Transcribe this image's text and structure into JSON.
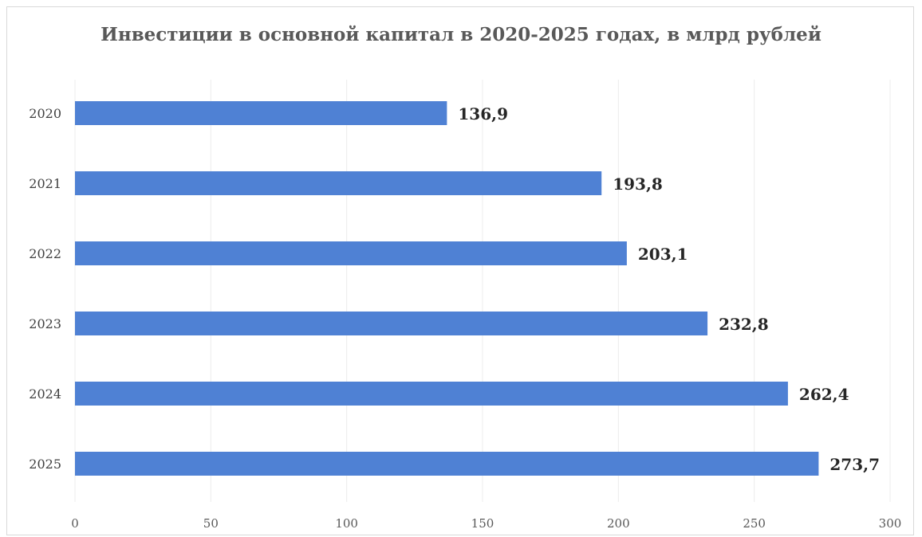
{
  "chart_data": {
    "type": "bar",
    "orientation": "horizontal",
    "title": "Инвестиции в основной капитал в 2020-2025 годах, в млрд рублей",
    "categories": [
      "2020",
      "2021",
      "2022",
      "2023",
      "2024",
      "2025"
    ],
    "values": [
      136.9,
      193.8,
      203.1,
      232.8,
      262.4,
      273.7
    ],
    "data_labels": [
      "136,9",
      "193,8",
      "203,1",
      "232,8",
      "262,4",
      "273,7"
    ],
    "xlim": [
      0,
      300
    ],
    "x_ticks": [
      0,
      50,
      100,
      150,
      200,
      250,
      300
    ],
    "xlabel": "",
    "ylabel": "",
    "grid": true,
    "legend": "none",
    "bar_color": "#4f81d4"
  }
}
